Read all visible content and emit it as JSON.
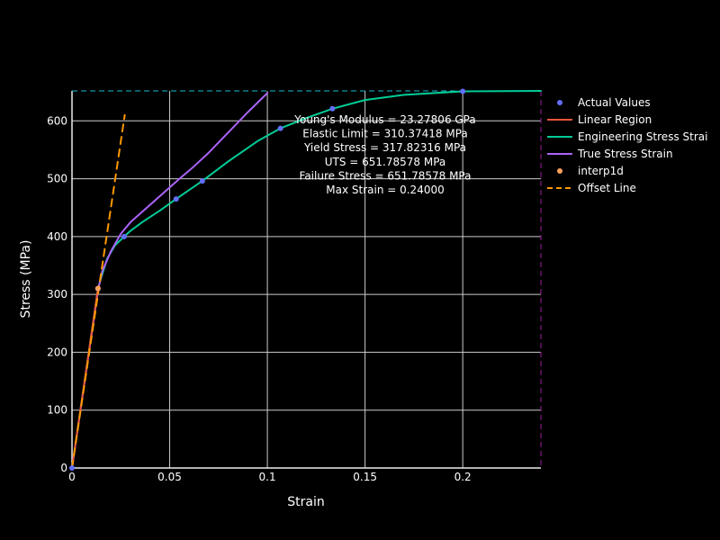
{
  "chart_data": {
    "type": "line",
    "xlabel": "Strain",
    "ylabel": "Stress (MPa)",
    "xlim": [
      0,
      0.24
    ],
    "ylim": [
      0,
      651.78578
    ],
    "x_ticks": [
      0,
      0.05,
      0.1,
      0.15,
      0.2
    ],
    "x_tick_labels": [
      "0",
      "0.05",
      "0.1",
      "0.15",
      "0.2"
    ],
    "y_ticks": [
      0,
      100,
      200,
      300,
      400,
      500,
      600
    ],
    "y_tick_labels": [
      "0",
      "100",
      "200",
      "300",
      "400",
      "500",
      "600"
    ],
    "grid": true,
    "legend_position": "right",
    "background": "#000000",
    "annotation_lines": [
      "Young's Modulus = 23.27806 GPa",
      "Elastic Limit = 310.37418 MPa",
      "Yield Stress = 317.82316 MPa",
      "UTS = 651.78578 MPa",
      "Failure Stress = 651.78578 MPa",
      "Max Strain = 0.24000"
    ],
    "series": [
      {
        "name": "Actual Values",
        "mode": "markers",
        "color": "#636efa",
        "x": [
          0,
          0.0133,
          0.0267,
          0.0533,
          0.0667,
          0.1067,
          0.1333,
          0.2
        ],
        "y": [
          0,
          310,
          400,
          465,
          496,
          587,
          621,
          651
        ]
      },
      {
        "name": "Linear Region",
        "mode": "lines",
        "color": "#ef553b",
        "x": [
          0,
          0.0133
        ],
        "y": [
          0,
          310.37
        ]
      },
      {
        "name": "Engineering Stress Strai",
        "mode": "lines",
        "color": "#00cc96",
        "x": [
          0,
          0.0133,
          0.015,
          0.018,
          0.022,
          0.0267,
          0.03,
          0.036,
          0.045,
          0.0533,
          0.0667,
          0.08,
          0.095,
          0.1067,
          0.12,
          0.1333,
          0.15,
          0.17,
          0.2,
          0.22,
          0.24
        ],
        "y": [
          0,
          310,
          330,
          362,
          385,
          400,
          410,
          425,
          445,
          465,
          496,
          530,
          565,
          587,
          605,
          621,
          636,
          645,
          651,
          651.5,
          651.79
        ]
      },
      {
        "name": "True Stress Strain",
        "mode": "lines",
        "color": "#ab63fa",
        "x": [
          0,
          0.0135,
          0.0155,
          0.02,
          0.025,
          0.03,
          0.035,
          0.045,
          0.055,
          0.062,
          0.07,
          0.08,
          0.09,
          0.1
        ],
        "y": [
          0,
          310,
          340,
          375,
          405,
          425,
          440,
          470,
          500,
          520,
          545,
          580,
          615,
          648
        ]
      },
      {
        "name": "interp1d",
        "mode": "markers",
        "color": "#ffa15a",
        "x": [
          0.0133
        ],
        "y": [
          310.37
        ]
      },
      {
        "name": "Offset Line",
        "mode": "lines",
        "dash": "dash",
        "color": "#ff9900",
        "x": [
          0,
          0.027
        ],
        "y": [
          0,
          610
        ]
      }
    ]
  }
}
